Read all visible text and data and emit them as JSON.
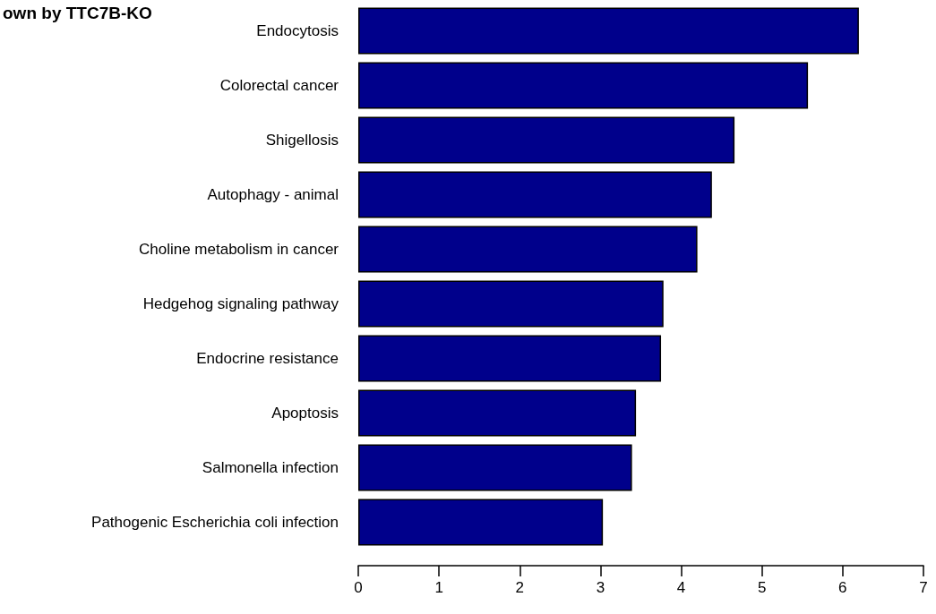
{
  "chart_data": {
    "type": "bar",
    "orientation": "horizontal",
    "title": "own by TTC7B-KO",
    "categories": [
      "Endocytosis",
      "Colorectal cancer",
      "Shigellosis",
      "Autophagy - animal",
      "Choline metabolism in cancer",
      "Hedgehog signaling pathway",
      "Endocrine resistance",
      "Apoptosis",
      "Salmonella infection",
      "Pathogenic Escherichia coli infection"
    ],
    "values": [
      6.2,
      5.57,
      4.66,
      4.38,
      4.2,
      3.78,
      3.75,
      3.44,
      3.39,
      3.03
    ],
    "color": "#00008b",
    "xlim": [
      0,
      7
    ],
    "xticks": [
      0,
      1,
      2,
      3,
      4,
      5,
      6,
      7
    ],
    "grid": false
  }
}
